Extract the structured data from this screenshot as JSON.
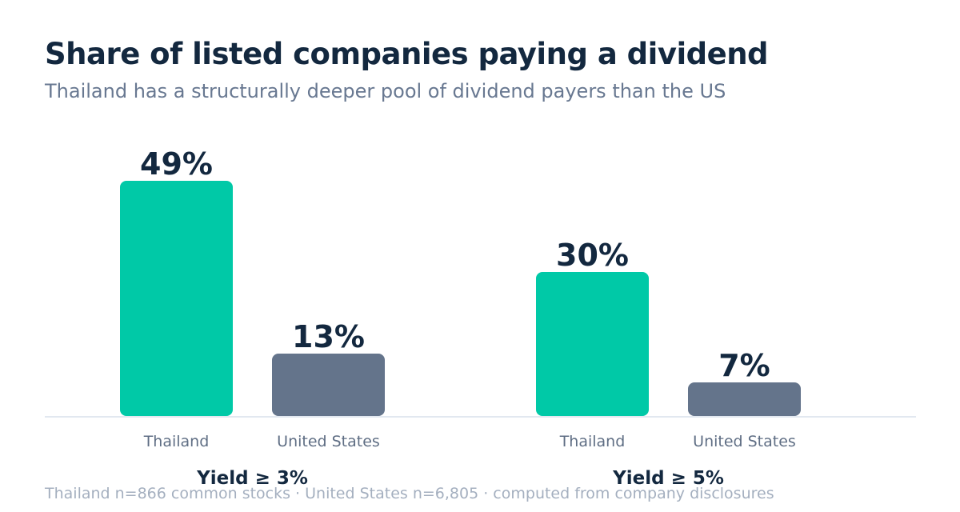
{
  "title": "Share of listed companies paying a dividend",
  "subtitle": "Thailand has a structurally deeper pool of dividend payers than the US",
  "footnote": "Thailand n=866 common stocks · United States n=6,805 · computed from company disclosures",
  "colors": {
    "Thailand": "#00c9a7",
    "United States": "#64748b",
    "value_label": "#13283f",
    "category_label": "#5f6e84",
    "group_label": "#13283f",
    "baseline": "#e2e8f0"
  },
  "chart_data": {
    "type": "bar",
    "title": "Share of listed companies paying a dividend",
    "subtitle": "Thailand has a structurally deeper pool of dividend payers than the US",
    "groups": [
      {
        "label": "Yield ≥ 3%",
        "bars": [
          {
            "category": "Thailand",
            "value": 49,
            "label": "49%"
          },
          {
            "category": "United States",
            "value": 13,
            "label": "13%"
          }
        ]
      },
      {
        "label": "Yield ≥ 5%",
        "bars": [
          {
            "category": "Thailand",
            "value": 30,
            "label": "30%"
          },
          {
            "category": "United States",
            "value": 7,
            "label": "7%"
          }
        ]
      }
    ],
    "unit": "%",
    "ylim": [
      0,
      49
    ],
    "grid": false,
    "legend": "none"
  }
}
